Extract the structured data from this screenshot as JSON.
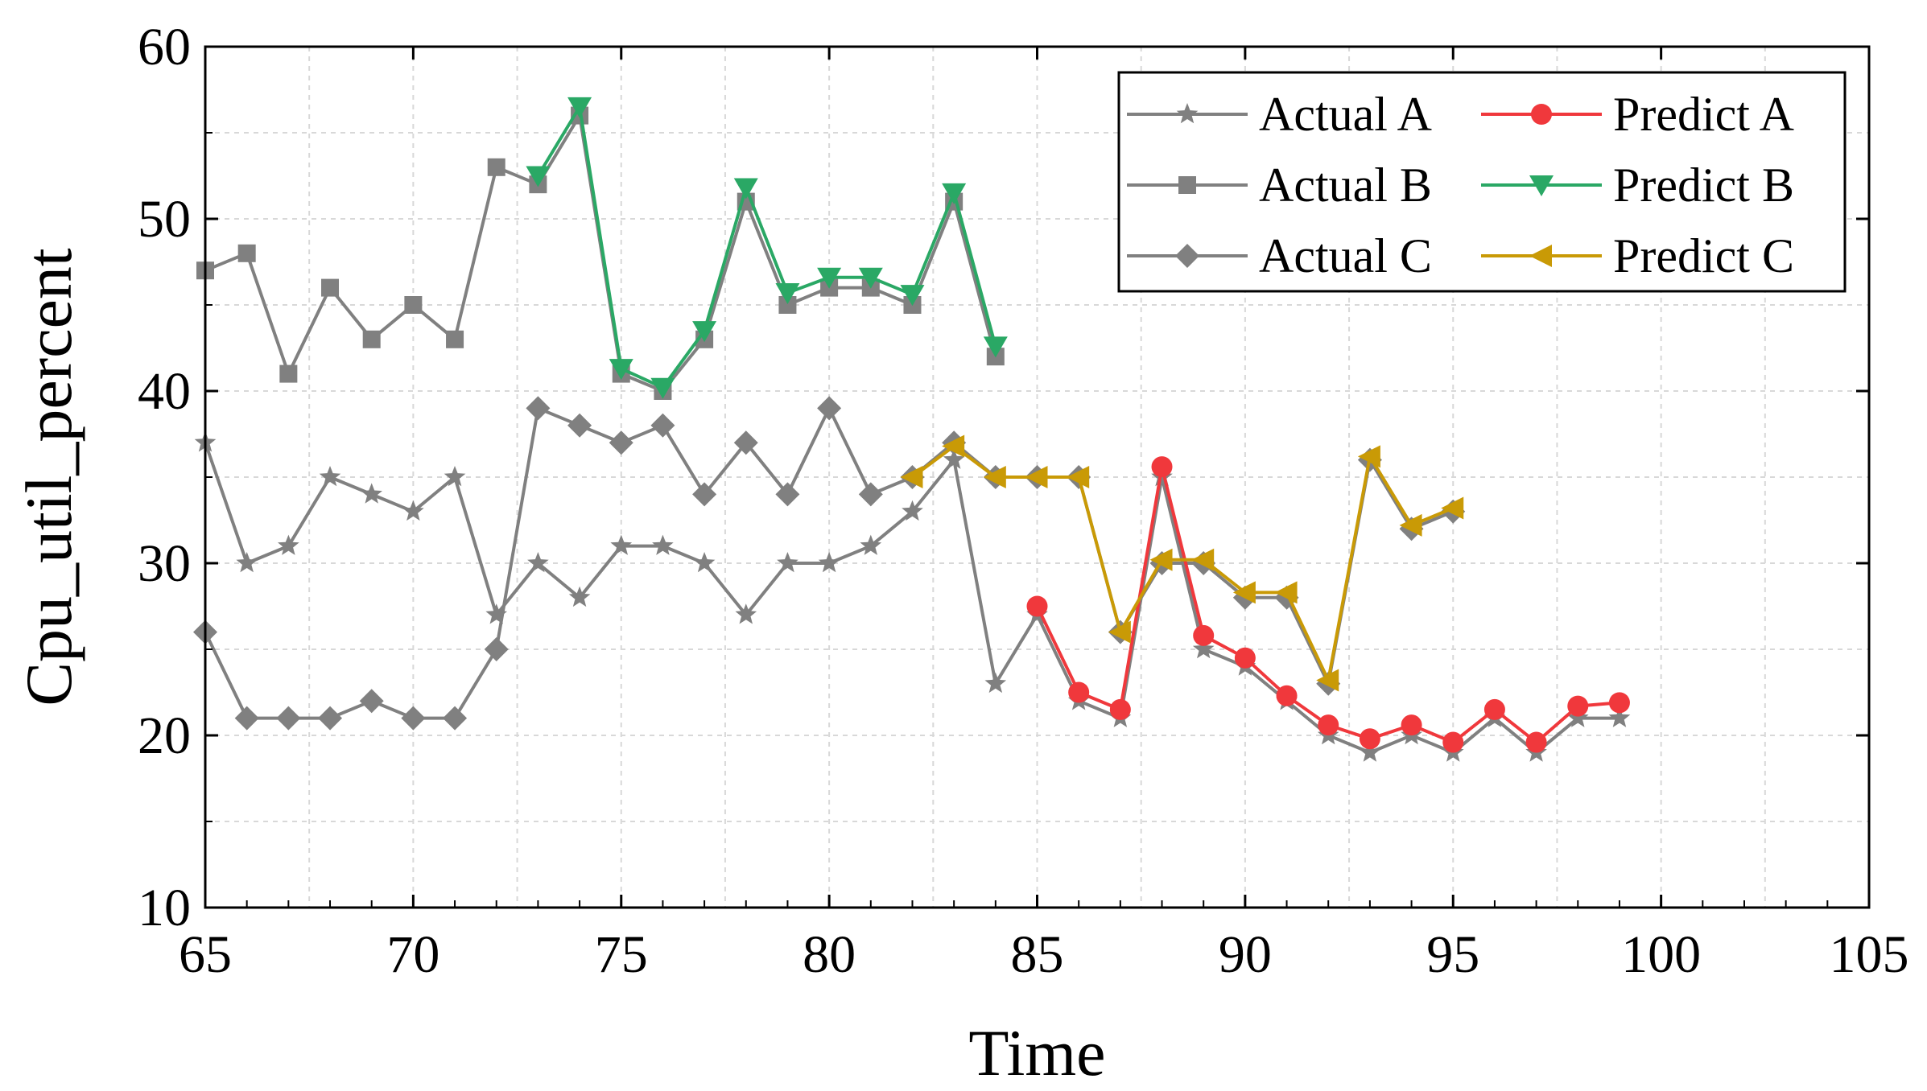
{
  "chart_data": {
    "type": "line",
    "xlabel": "Time",
    "ylabel": "Cpu_util_percent",
    "xlim": [
      65,
      105
    ],
    "ylim": [
      10,
      60
    ],
    "xticks": [
      65,
      70,
      75,
      80,
      85,
      90,
      95,
      100,
      105
    ],
    "yticks": [
      10,
      20,
      30,
      40,
      50,
      60
    ],
    "grid": true,
    "legend_position": "top-right",
    "colors": {
      "actual": "#808080",
      "predict_a": "#f0383c",
      "predict_b": "#2aa865",
      "predict_c": "#c99a06"
    },
    "series": [
      {
        "name": "Actual A",
        "marker": "star",
        "color": "#808080",
        "x": [
          65,
          66,
          67,
          68,
          69,
          70,
          71,
          72,
          73,
          74,
          75,
          76,
          77,
          78,
          79,
          80,
          81,
          82,
          83,
          84,
          85,
          86,
          87,
          88,
          89,
          90,
          91,
          92,
          93,
          94,
          95,
          96,
          97,
          98,
          99
        ],
        "y": [
          37,
          30,
          31,
          35,
          34,
          33,
          35,
          27,
          30,
          28,
          31,
          31,
          30,
          27,
          30,
          30,
          31,
          33,
          36,
          23,
          27,
          22,
          21,
          35,
          25,
          24,
          22,
          20,
          19,
          20,
          19,
          21,
          19,
          21,
          21
        ]
      },
      {
        "name": "Actual B",
        "marker": "square",
        "color": "#808080",
        "x": [
          65,
          66,
          67,
          68,
          69,
          70,
          71,
          72,
          73,
          74,
          75,
          76,
          77,
          78,
          79,
          80,
          81,
          82,
          83,
          84
        ],
        "y": [
          47,
          48,
          41,
          46,
          43,
          45,
          43,
          53,
          52,
          56,
          41,
          40,
          43,
          51,
          45,
          46,
          46,
          45,
          51,
          42
        ]
      },
      {
        "name": "Actual C",
        "marker": "diamond",
        "color": "#808080",
        "x": [
          65,
          66,
          67,
          68,
          69,
          70,
          71,
          72,
          73,
          74,
          75,
          76,
          77,
          78,
          79,
          80,
          81,
          82,
          83,
          84,
          85,
          86,
          87,
          88,
          89,
          90,
          91,
          92,
          93,
          94,
          95
        ],
        "y": [
          26,
          21,
          21,
          21,
          22,
          21,
          21,
          25,
          39,
          38,
          37,
          38,
          34,
          37,
          34,
          39,
          34,
          35,
          37,
          35,
          35,
          35,
          26,
          30,
          30,
          28,
          28,
          23,
          36,
          32,
          33
        ]
      },
      {
        "name": "Predict A",
        "marker": "circle",
        "color": "#f0383c",
        "x": [
          85,
          86,
          87,
          88,
          89,
          90,
          91,
          92,
          93,
          94,
          95,
          96,
          97,
          98,
          99
        ],
        "y": [
          27.5,
          22.5,
          21.5,
          35.6,
          25.8,
          24.5,
          22.3,
          20.6,
          19.8,
          20.6,
          19.6,
          21.5,
          19.6,
          21.7,
          21.9
        ]
      },
      {
        "name": "Predict B",
        "marker": "triangle-down",
        "color": "#2aa865",
        "x": [
          73,
          74,
          75,
          76,
          77,
          78,
          79,
          80,
          81,
          82,
          83,
          84
        ],
        "y": [
          52.5,
          56.5,
          41.3,
          40.2,
          43.5,
          51.8,
          45.7,
          46.6,
          46.6,
          45.6,
          51.5,
          42.6
        ]
      },
      {
        "name": "Predict C",
        "marker": "triangle-left",
        "color": "#c99a06",
        "x": [
          82,
          83,
          84,
          85,
          86,
          87,
          88,
          89,
          90,
          91,
          92,
          93,
          94,
          95
        ],
        "y": [
          35,
          36.8,
          35,
          35,
          35,
          26,
          30.2,
          30.2,
          28.3,
          28.3,
          23.2,
          36.2,
          32.2,
          33.2
        ]
      }
    ],
    "legend": {
      "left_column": [
        "Actual A",
        "Actual B",
        "Actual C"
      ],
      "right_column": [
        "Predict A",
        "Predict B",
        "Predict C"
      ]
    }
  }
}
